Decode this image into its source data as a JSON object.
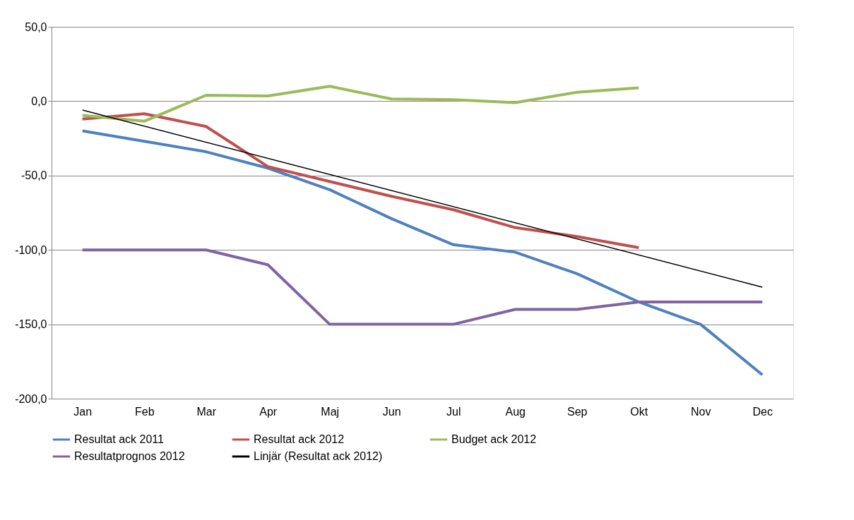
{
  "chart_data": {
    "type": "line",
    "categories": [
      "Jan",
      "Feb",
      "Mar",
      "Apr",
      "Maj",
      "Jun",
      "Jul",
      "Aug",
      "Sep",
      "Okt",
      "Nov",
      "Dec"
    ],
    "series": [
      {
        "name": "Resultat ack 2011",
        "color": "#4f81bd",
        "values": [
          -20,
          -27,
          -34,
          -45,
          -59.5,
          -79,
          -96.5,
          -101.5,
          -116,
          -135,
          -150,
          -184
        ]
      },
      {
        "name": "Resultat ack 2012",
        "color": "#c0504d",
        "values": [
          -12,
          -8.5,
          -17,
          -44,
          -54,
          -64,
          -73,
          -85,
          -91,
          -98.5,
          null,
          null
        ]
      },
      {
        "name": "Budget ack 2012",
        "color": "#9bbb59",
        "values": [
          -9.5,
          -13.5,
          4,
          3.5,
          10,
          1.5,
          1,
          -1,
          6,
          9,
          null,
          null
        ]
      },
      {
        "name": "Resultatprognos 2012",
        "color": "#8064a2",
        "values": [
          -100,
          -100,
          -100,
          -110,
          -150,
          -150,
          -150,
          -140,
          -140,
          -135,
          -135,
          -135
        ]
      },
      {
        "name": "Linjär (Resultat ack 2012)",
        "color": "#000000",
        "x": [
          "Jan",
          "Dec"
        ],
        "values": [
          -6,
          -125
        ]
      }
    ],
    "ylim": [
      -200,
      50
    ],
    "yticks": [
      {
        "value": -200,
        "label": "-200,0"
      },
      {
        "value": -150,
        "label": "-150,0"
      },
      {
        "value": -100,
        "label": "-100,0"
      },
      {
        "value": -50,
        "label": "-50,0"
      },
      {
        "value": 0,
        "label": "0,0"
      },
      {
        "value": 50,
        "label": "50,0"
      }
    ],
    "grid": "y",
    "legend": "bottom",
    "marker": "none",
    "line_style": "solid"
  }
}
